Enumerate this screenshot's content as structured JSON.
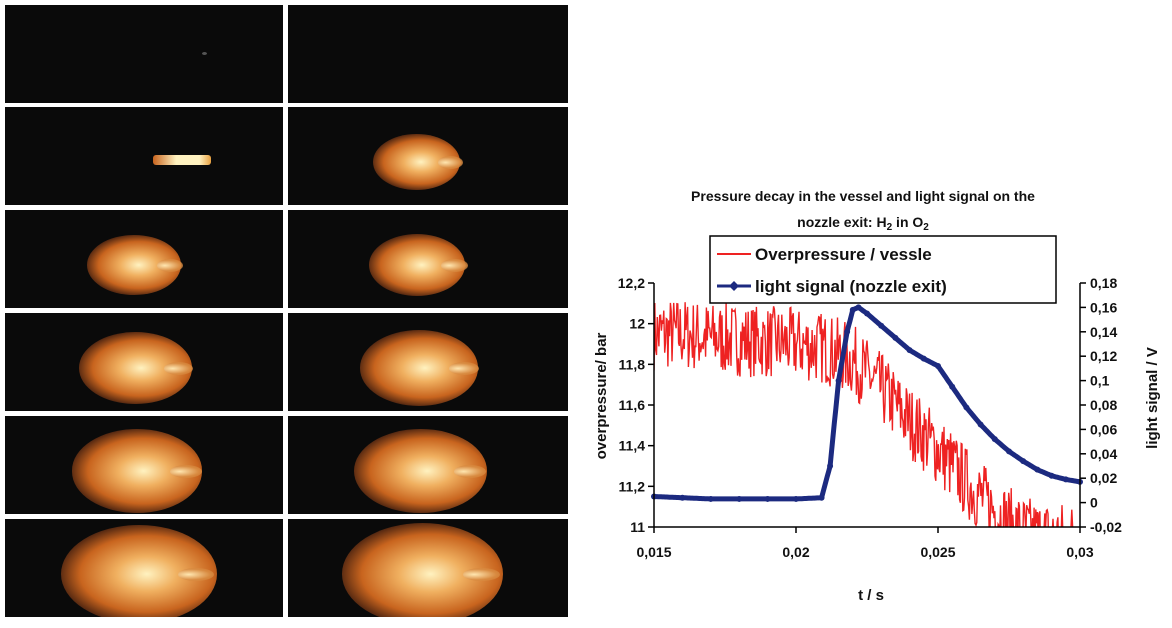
{
  "image_panel": {
    "description_name": "flame-photo-sequence",
    "frames": [
      {
        "shape": "dot",
        "side": "left",
        "size": 0.05
      },
      {
        "shape": "jet",
        "side": "right",
        "size": 0.2
      },
      {
        "shape": "jet",
        "side": "left",
        "size": 0.3
      },
      {
        "shape": "plume",
        "side": "right",
        "size": 0.35
      },
      {
        "shape": "plume",
        "side": "left",
        "size": 0.4
      },
      {
        "shape": "plume",
        "side": "right",
        "size": 0.42
      },
      {
        "shape": "plume",
        "side": "left",
        "size": 0.55
      },
      {
        "shape": "plume",
        "side": "right",
        "size": 0.6
      },
      {
        "shape": "plume",
        "side": "left",
        "size": 0.7
      },
      {
        "shape": "plume",
        "side": "right",
        "size": 0.72
      },
      {
        "shape": "plume",
        "side": "left",
        "size": 0.9
      },
      {
        "shape": "plume",
        "side": "right",
        "size": 0.95
      }
    ],
    "colors": {
      "background": "#0a0a0a",
      "flame_core": "#fff2c0",
      "flame_edge": "#c8641e"
    }
  },
  "chart_data": {
    "type": "line",
    "title_line1": "Pressure decay in the vessel and light signal on the",
    "title_line2_prefix": "nozzle exit: H",
    "title_sub1": "2",
    "title_mid": " in O",
    "title_sub2": "2",
    "xlabel": "t / s",
    "ylabel_left": "overpressure/ bar",
    "ylabel_right": "light signal / V",
    "xlim": [
      0.015,
      0.03
    ],
    "ylim_left": [
      11,
      12.2
    ],
    "ylim_right": [
      -0.02,
      0.18
    ],
    "x_ticks": [
      "0,015",
      "0,02",
      "0,025",
      "0,03"
    ],
    "x_tick_values": [
      0.015,
      0.02,
      0.025,
      0.03
    ],
    "y_left_ticks": [
      "11",
      "11,2",
      "11,4",
      "11,6",
      "11,8",
      "12",
      "12,2"
    ],
    "y_left_tick_values": [
      11,
      11.2,
      11.4,
      11.6,
      11.8,
      12,
      12.2
    ],
    "y_right_ticks": [
      "-0,02",
      "0",
      "0,02",
      "0,04",
      "0,06",
      "0,08",
      "0,1",
      "0,12",
      "0,14",
      "0,16",
      "0,18"
    ],
    "y_right_tick_values": [
      -0.02,
      0,
      0.02,
      0.04,
      0.06,
      0.08,
      0.1,
      0.12,
      0.14,
      0.16,
      0.18
    ],
    "legend_position": "top",
    "series": [
      {
        "name": "Overpressure / vessle",
        "axis": "left",
        "color": "#ee2222",
        "style": "noisy-line",
        "x": [
          0.015,
          0.016,
          0.017,
          0.018,
          0.019,
          0.02,
          0.021,
          0.0215,
          0.022,
          0.0225,
          0.023,
          0.0235,
          0.024,
          0.0245,
          0.025,
          0.0255,
          0.026,
          0.0265,
          0.027,
          0.0275,
          0.028,
          0.0285,
          0.029,
          0.0295,
          0.03
        ],
        "y": [
          11.95,
          11.95,
          11.93,
          11.92,
          11.91,
          11.9,
          11.88,
          11.85,
          11.82,
          11.75,
          11.68,
          11.6,
          11.52,
          11.45,
          11.38,
          11.3,
          11.22,
          11.15,
          11.08,
          11.02,
          10.98,
          10.96,
          10.95,
          10.95,
          10.95
        ],
        "noise_amplitude": 0.18
      },
      {
        "name": "light signal (nozzle exit)",
        "axis": "right",
        "color": "#1c2a80",
        "style": "thick-line-with-markers",
        "x": [
          0.015,
          0.016,
          0.017,
          0.018,
          0.019,
          0.02,
          0.0209,
          0.0212,
          0.0215,
          0.0218,
          0.022,
          0.0222,
          0.0225,
          0.023,
          0.0235,
          0.024,
          0.0245,
          0.025,
          0.0255,
          0.026,
          0.0265,
          0.027,
          0.0275,
          0.028,
          0.0285,
          0.029,
          0.0295,
          0.03
        ],
        "y": [
          0.005,
          0.004,
          0.003,
          0.003,
          0.003,
          0.003,
          0.004,
          0.03,
          0.1,
          0.14,
          0.158,
          0.16,
          0.155,
          0.145,
          0.135,
          0.125,
          0.118,
          0.112,
          0.095,
          0.078,
          0.064,
          0.052,
          0.042,
          0.034,
          0.027,
          0.022,
          0.019,
          0.017
        ]
      }
    ]
  }
}
